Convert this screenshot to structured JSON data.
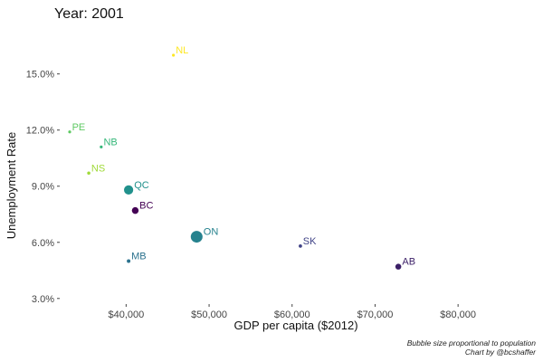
{
  "chart_data": {
    "type": "scatter",
    "title": "Year: 2001",
    "xlabel": "GDP per capita ($2012)",
    "ylabel": "Unemployment Rate",
    "xlim": [
      32000,
      85000
    ],
    "ylim": [
      2.7,
      17.5
    ],
    "x_ticks": [
      40000,
      50000,
      60000,
      70000,
      80000
    ],
    "x_tick_labels": [
      "$40,000",
      "$50,000",
      "$60,000",
      "$70,000",
      "$80,000"
    ],
    "y_ticks": [
      3.0,
      6.0,
      9.0,
      12.0,
      15.0
    ],
    "y_tick_labels": [
      "3.0%",
      "6.0%",
      "9.0%",
      "12.0%",
      "15.0%"
    ],
    "grid": false,
    "size_encoding": "population",
    "points": [
      {
        "label": "NL",
        "x": 45700,
        "y": 16.0,
        "size": 0.51,
        "color": "#fde725"
      },
      {
        "label": "PE",
        "x": 33200,
        "y": 11.9,
        "size": 0.14,
        "color": "#5ec962"
      },
      {
        "label": "NB",
        "x": 37000,
        "y": 11.1,
        "size": 0.73,
        "color": "#35b779"
      },
      {
        "label": "NS",
        "x": 35500,
        "y": 9.7,
        "size": 0.91,
        "color": "#a0da39"
      },
      {
        "label": "QC",
        "x": 40300,
        "y": 8.8,
        "size": 7.3,
        "color": "#21918c"
      },
      {
        "label": "BC",
        "x": 41100,
        "y": 7.7,
        "size": 3.9,
        "color": "#440154"
      },
      {
        "label": "ON",
        "x": 48500,
        "y": 6.3,
        "size": 11.9,
        "color": "#26828e"
      },
      {
        "label": "SK",
        "x": 61000,
        "y": 5.8,
        "size": 0.98,
        "color": "#414487"
      },
      {
        "label": "MB",
        "x": 40300,
        "y": 5.0,
        "size": 1.13,
        "color": "#2c728e"
      },
      {
        "label": "AB",
        "x": 72800,
        "y": 4.7,
        "size": 3.0,
        "color": "#3b1f67"
      }
    ]
  },
  "caption": {
    "line1": "Bubble size proportional to population",
    "line2": "Chart by @bcshaffer"
  }
}
